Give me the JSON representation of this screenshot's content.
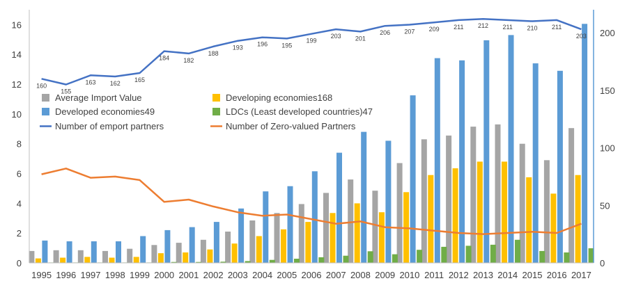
{
  "chart_data": {
    "type": "bar",
    "title": "",
    "xlabel": "",
    "ylabel": "",
    "categories": [
      "1995",
      "1996",
      "1997",
      "1998",
      "1999",
      "2000",
      "2001",
      "2002",
      "2003",
      "2004",
      "2005",
      "2006",
      "2007",
      "2008",
      "2009",
      "2010",
      "2011",
      "2012",
      "2013",
      "2014",
      "2015",
      "2016",
      "2017"
    ],
    "ylim": [
      0,
      17
    ],
    "yticks": [
      "0",
      "2",
      "4",
      "6",
      "8",
      "10",
      "12",
      "14",
      "16"
    ],
    "y2lim": [
      0,
      220
    ],
    "y2ticks": [
      "0",
      "50",
      "100",
      "150",
      "200"
    ],
    "grid": false,
    "legend_position": "middle-left",
    "series": [
      {
        "name": "Average Import Value",
        "kind": "bar",
        "axis": "left",
        "color": "#a5a5a5",
        "values": [
          0.8,
          0.85,
          0.85,
          0.8,
          0.95,
          1.2,
          1.35,
          1.55,
          2.1,
          2.85,
          3.35,
          3.95,
          4.7,
          5.6,
          4.85,
          6.7,
          8.3,
          8.55,
          9.15,
          9.3,
          8.0,
          6.9,
          9.05
        ]
      },
      {
        "name": "Developing economies168",
        "kind": "bar",
        "axis": "left",
        "color": "#ffc000",
        "values": [
          0.3,
          0.35,
          0.4,
          0.35,
          0.4,
          0.65,
          0.7,
          0.9,
          1.3,
          1.8,
          2.25,
          2.75,
          3.35,
          4.0,
          3.4,
          4.75,
          5.9,
          6.35,
          6.8,
          6.8,
          5.75,
          4.65,
          5.9
        ]
      },
      {
        "name": "Developed economies49",
        "kind": "bar",
        "axis": "left",
        "color": "#5b9bd5",
        "values": [
          1.5,
          1.45,
          1.45,
          1.45,
          1.8,
          2.2,
          2.4,
          2.75,
          3.65,
          4.8,
          5.15,
          6.15,
          7.4,
          8.8,
          8.2,
          11.25,
          13.75,
          13.6,
          14.95,
          15.3,
          13.4,
          12.9,
          16.05
        ]
      },
      {
        "name": "LDCs (Least developed countries)47",
        "kind": "bar",
        "axis": "left",
        "color": "#70ad47",
        "values": [
          0.03,
          0.03,
          0.03,
          0.03,
          0.03,
          0.06,
          0.06,
          0.08,
          0.12,
          0.2,
          0.28,
          0.38,
          0.48,
          0.78,
          0.58,
          0.88,
          1.08,
          1.15,
          1.22,
          1.55,
          0.8,
          0.7,
          0.98
        ]
      },
      {
        "name": "Number of emport partners",
        "kind": "line",
        "axis": "right",
        "color": "#4472c4",
        "values": [
          160,
          155,
          163,
          162,
          165,
          184,
          182,
          188,
          193,
          196,
          195,
          199,
          203,
          201,
          206,
          207,
          209,
          211,
          212,
          211,
          210,
          211,
          203
        ],
        "labels": [
          "160",
          "155",
          "163",
          "162",
          "165",
          "184",
          "182",
          "188",
          "193",
          "196",
          "195",
          "199",
          "203",
          "201",
          "206",
          "207",
          "209",
          "211",
          "212",
          "211",
          "210",
          "211",
          "203"
        ]
      },
      {
        "name": "Number of Zero-valued Partners",
        "kind": "line",
        "axis": "right",
        "color": "#ed7d31",
        "values": [
          77,
          82,
          74,
          75,
          72,
          53,
          55,
          49,
          44,
          41,
          42,
          38,
          34,
          36,
          31,
          30,
          28,
          26,
          25,
          26,
          27,
          26,
          34
        ]
      }
    ]
  }
}
